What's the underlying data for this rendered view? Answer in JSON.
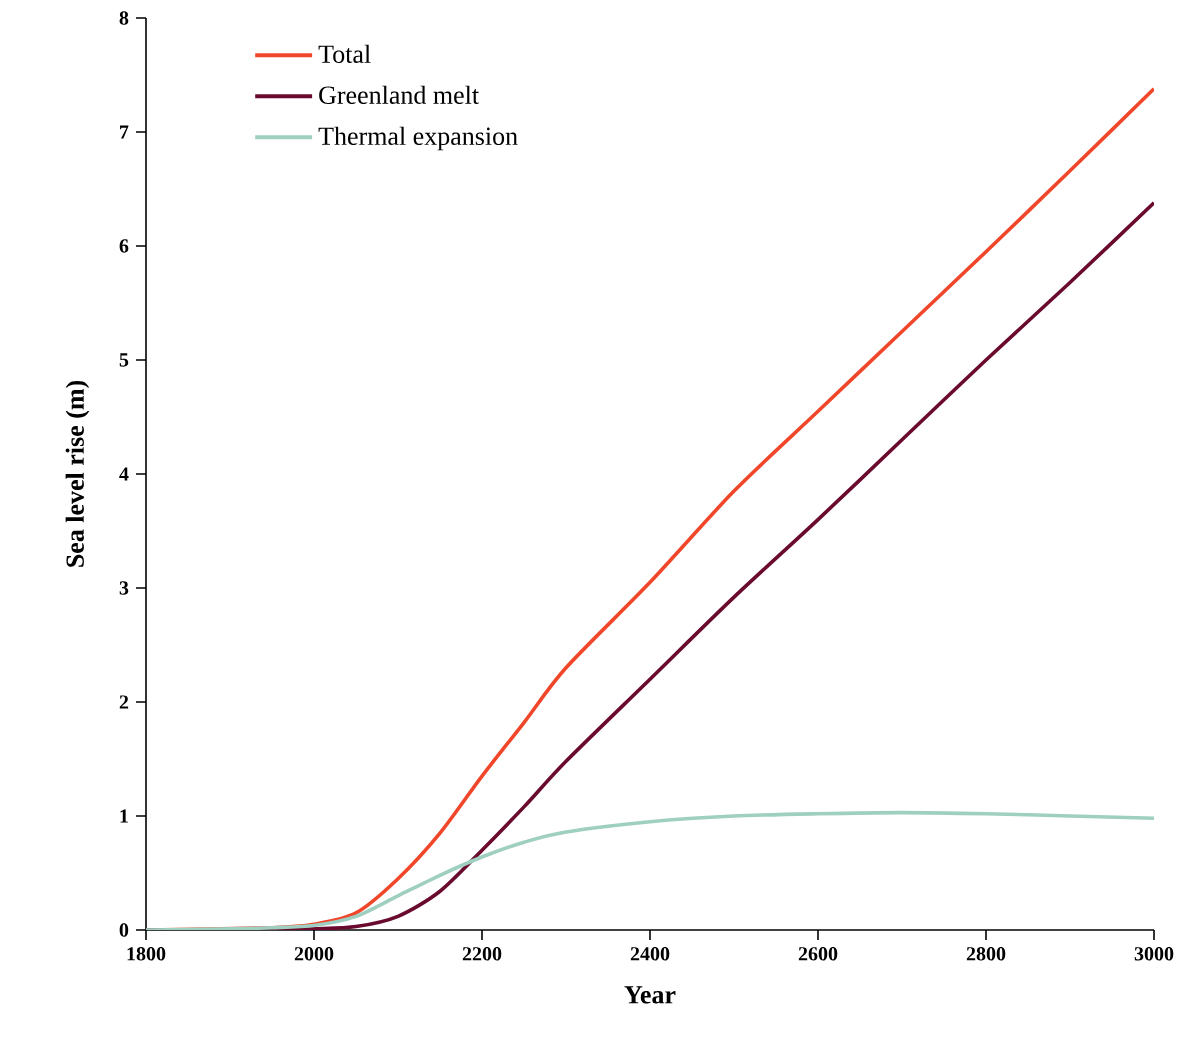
{
  "chart_data": {
    "type": "line",
    "xlabel": "Year",
    "ylabel": "Sea level rise (m)",
    "x": [
      1800,
      1900,
      1950,
      2000,
      2050,
      2100,
      2150,
      2200,
      2250,
      2300,
      2400,
      2500,
      2600,
      2700,
      2800,
      2900,
      3000
    ],
    "series": [
      {
        "name": "Total",
        "color": "#f0462a",
        "values": [
          0,
          null,
          0.02,
          0.05,
          0.15,
          0.45,
          0.85,
          1.35,
          1.82,
          2.3,
          3.05,
          3.85,
          4.55,
          5.25,
          5.95,
          6.66,
          7.38
        ]
      },
      {
        "name": "Greenland melt",
        "color": "#6a0a2e",
        "values": [
          0,
          0,
          0,
          0.01,
          0.03,
          0.12,
          0.34,
          0.7,
          1.08,
          1.48,
          2.2,
          2.92,
          3.6,
          4.3,
          5.0,
          5.68,
          6.38
        ]
      },
      {
        "name": "Thermal expansion",
        "color": "#9fcfc0",
        "values": [
          0,
          0.01,
          0.02,
          0.04,
          0.12,
          0.3,
          0.48,
          0.64,
          0.77,
          0.86,
          0.95,
          1.0,
          1.02,
          1.03,
          1.02,
          1.0,
          0.98
        ]
      }
    ],
    "xlim": [
      1800,
      3000
    ],
    "xticks": [
      1800,
      2000,
      2200,
      2400,
      2600,
      2800,
      3000
    ],
    "ylim": [
      0,
      8
    ],
    "yticks": [
      0,
      1,
      2,
      3,
      4,
      5,
      6,
      7,
      8
    ],
    "grid": false,
    "legend": "top left",
    "marker": "none",
    "line_style": "solid"
  }
}
